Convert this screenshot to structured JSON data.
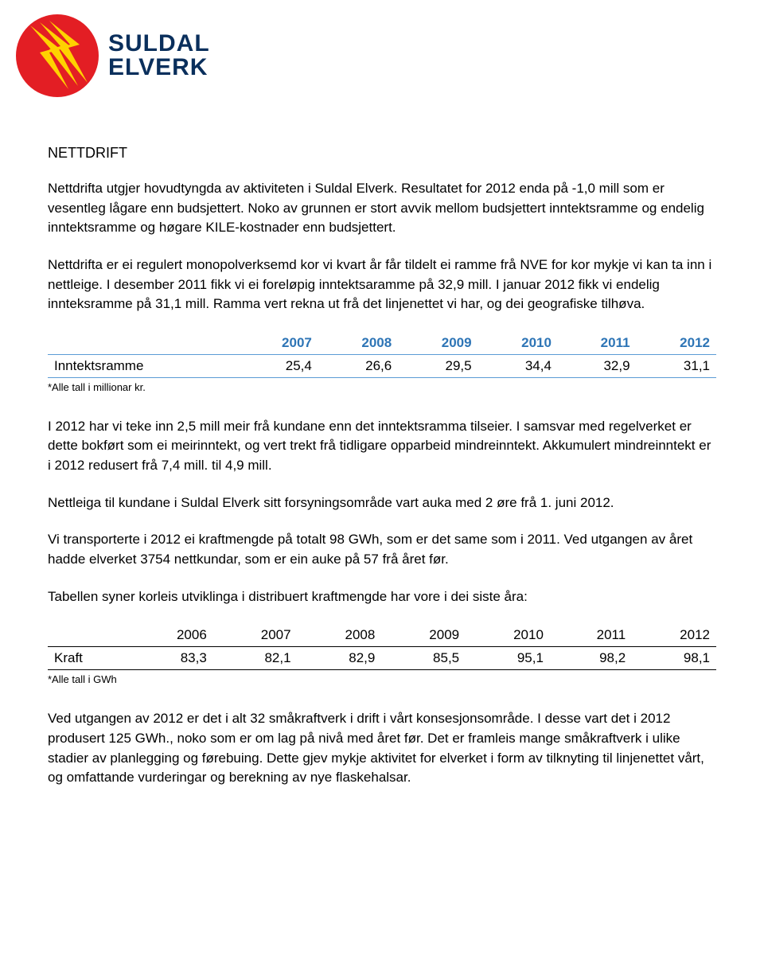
{
  "logo": {
    "line1": "SULDAL",
    "line2": "ELVERK",
    "circle_color": "#e31e24",
    "bolt_color": "#ffd200",
    "text_color": "#0a2f5c"
  },
  "heading": "NETTDRIFT",
  "para1": "Nettdrifta utgjer hovudtyngda av aktiviteten i Suldal Elverk. Resultatet for 2012 enda på -1,0 mill som er vesentleg lågare enn budsjettert. Noko av grunnen er stort avvik mellom budsjettert inntektsramme og endelig inntektsramme og høgare KILE-kostnader enn budsjettert.",
  "para2": "Nettdrifta er ei regulert monopolverksemd kor vi kvart år får tildelt ei ramme frå NVE for kor mykje vi kan ta inn i nettleige. I desember 2011 fikk vi ei foreløpig inntektsaramme på 32,9 mill. I januar 2012 fikk vi endelig innteksramme på 31,1 mill. Ramma vert rekna ut frå det linjenettet vi har, og dei geografiske tilhøva.",
  "table1": {
    "years_color": "#2e75b6",
    "border_color": "#5b9bd5",
    "years": [
      "2007",
      "2008",
      "2009",
      "2010",
      "2011",
      "2012"
    ],
    "row_label": "Inntektsramme",
    "values": [
      "25,4",
      "26,6",
      "29,5",
      "34,4",
      "32,9",
      "31,1"
    ],
    "footnote": "*Alle tall i millionar kr."
  },
  "para3": "I 2012 har vi teke inn 2,5 mill meir frå kundane enn det inntektsramma tilseier.  I samsvar med regelverket er dette bokført som ei meirinntekt, og vert trekt frå tidligare opparbeid mindreinntekt. Akkumulert mindreinntekt er i 2012 redusert frå 7,4 mill. til 4,9 mill.",
  "para4": "Nettleiga til kundane i Suldal Elverk sitt forsyningsområde vart auka med 2 øre frå 1. juni 2012.",
  "para5": "Vi transporterte i 2012 ei kraftmengde på totalt 98 GWh, som er det same som i 2011. Ved utgangen av året hadde elverket 3754 nettkundar, som er ein auke på 57 frå året før.",
  "para6": "Tabellen syner korleis utviklinga i distribuert kraftmengde har vore i dei  siste åra:",
  "table2": {
    "years": [
      "2006",
      "2007",
      "2008",
      "2009",
      "2010",
      "2011",
      "2012"
    ],
    "row_label": "Kraft",
    "values": [
      "83,3",
      "82,1",
      "82,9",
      "85,5",
      "95,1",
      "98,2",
      "98,1"
    ],
    "footnote": "*Alle tall i GWh"
  },
  "para7": "Ved utgangen av 2012 er det i alt 32 småkraftverk i drift i vårt konsesjonsområde.  I desse vart det i 2012 produsert 125 GWh., noko som er om lag på nivå med året før.  Det er framleis mange småkraftverk i ulike stadier av planlegging og førebuing. Dette gjev mykje aktivitet for elverket i form av tilknyting til linjenettet vårt, og omfattande vurderingar og berekning av nye flaskehalsar."
}
